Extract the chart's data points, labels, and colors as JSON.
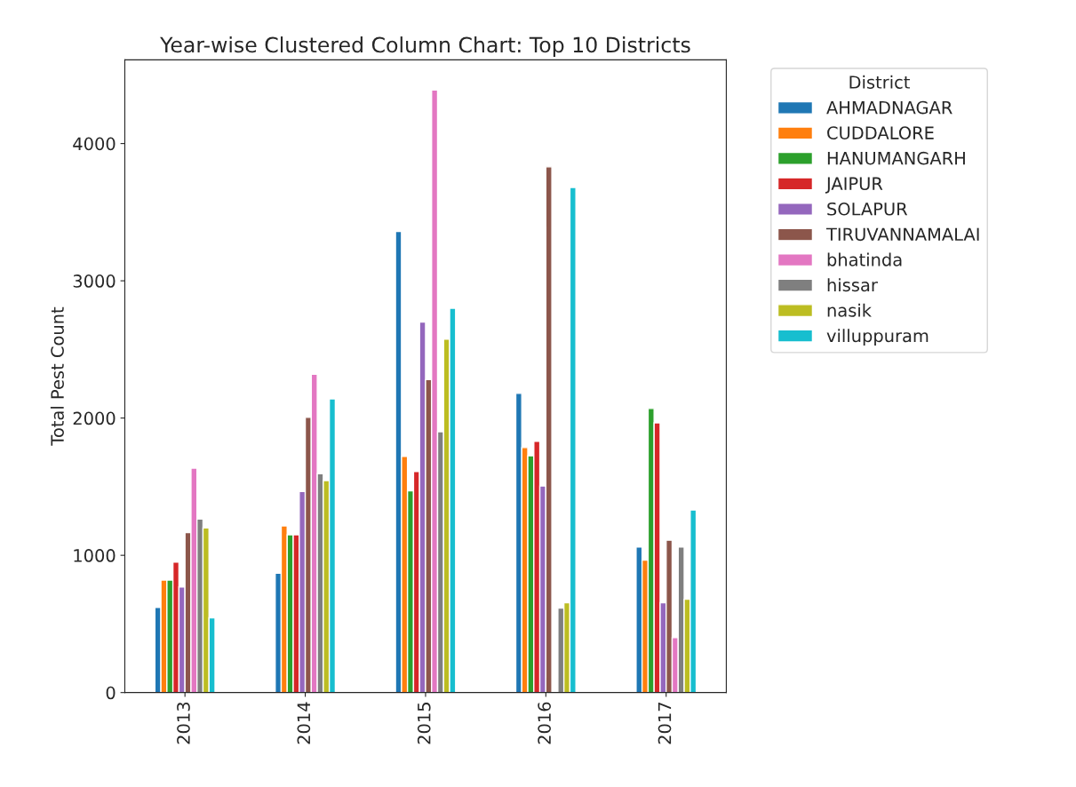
{
  "chart_data": {
    "type": "bar",
    "title": "Year-wise Clustered Column Chart: Top 10 Districts",
    "ylabel": "Total Pest Count",
    "legend_title": "District",
    "categories": [
      "2013",
      "2014",
      "2015",
      "2016",
      "2017"
    ],
    "series": [
      {
        "name": "AHMADNAGAR",
        "color": "#1f77b4",
        "values": [
          620,
          870,
          3360,
          2180,
          1060
        ]
      },
      {
        "name": "CUDDALORE",
        "color": "#ff7f0e",
        "values": [
          820,
          1215,
          1720,
          1785,
          965
        ]
      },
      {
        "name": "HANUMANGARH",
        "color": "#2ca02c",
        "values": [
          820,
          1150,
          1470,
          1725,
          2070
        ]
      },
      {
        "name": "JAIPUR",
        "color": "#d62728",
        "values": [
          950,
          1150,
          1610,
          1830,
          1965
        ]
      },
      {
        "name": "SOLAPUR",
        "color": "#9467bd",
        "values": [
          770,
          1465,
          2700,
          1505,
          655
        ]
      },
      {
        "name": "TIRUVANNAMALAI",
        "color": "#8c564b",
        "values": [
          1165,
          2005,
          2280,
          3830,
          1110
        ]
      },
      {
        "name": "bhatinda",
        "color": "#e377c2",
        "values": [
          1635,
          2320,
          4390,
          null,
          400
        ]
      },
      {
        "name": "hissar",
        "color": "#7f7f7f",
        "values": [
          1265,
          1595,
          1900,
          615,
          1060
        ]
      },
      {
        "name": "nasik",
        "color": "#bcbd22",
        "values": [
          1200,
          1545,
          2575,
          655,
          680
        ]
      },
      {
        "name": "villuppuram",
        "color": "#17becf",
        "values": [
          545,
          2140,
          2800,
          3680,
          1330
        ]
      }
    ],
    "ylim": [
      0,
      4610
    ],
    "yticks": [
      0,
      1000,
      2000,
      3000,
      4000
    ],
    "grid": false,
    "legend": "top right"
  }
}
